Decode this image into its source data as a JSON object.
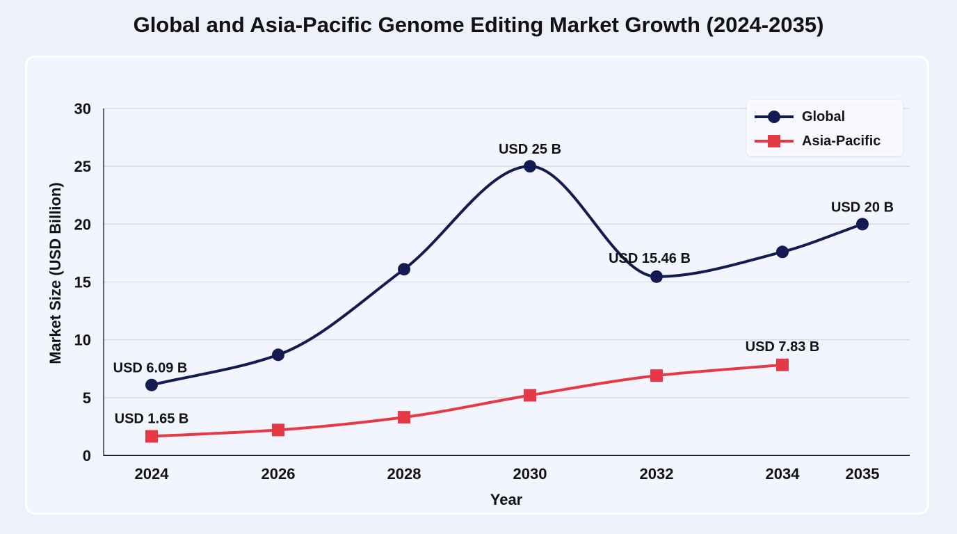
{
  "title": "Global and Asia-Pacific Genome Editing Market Growth (2024-2035)",
  "chart_data": {
    "type": "line",
    "title": "Global and Asia-Pacific Genome Editing Market Growth (2024-2035)",
    "xlabel": "Year",
    "ylabel": "Market Size (USD Billion)",
    "categories": [
      "2024",
      "2026",
      "2028",
      "2030",
      "2032",
      "2034",
      "2035"
    ],
    "ylim": [
      0,
      30
    ],
    "yticks": [
      "0",
      "5",
      "10",
      "15",
      "20",
      "25",
      "30"
    ],
    "grid": "horizontal",
    "legend_position": "top-right",
    "series": [
      {
        "name": "Global",
        "color": "#141a52",
        "marker": "circle",
        "values": [
          6.09,
          8.7,
          16.1,
          25,
          15.46,
          17.6,
          20
        ],
        "labels": [
          "USD 6.09 B",
          "",
          "",
          "USD 25 B",
          "USD 15.46 B",
          "",
          "USD 20 B"
        ]
      },
      {
        "name": "Asia-Pacific",
        "color": "#e53945",
        "marker": "square",
        "values": [
          1.65,
          2.2,
          3.3,
          5.2,
          6.9,
          7.83,
          null
        ],
        "labels": [
          "USD 1.65 B",
          "",
          "",
          "",
          "",
          "USD 7.83 B",
          ""
        ]
      }
    ]
  }
}
